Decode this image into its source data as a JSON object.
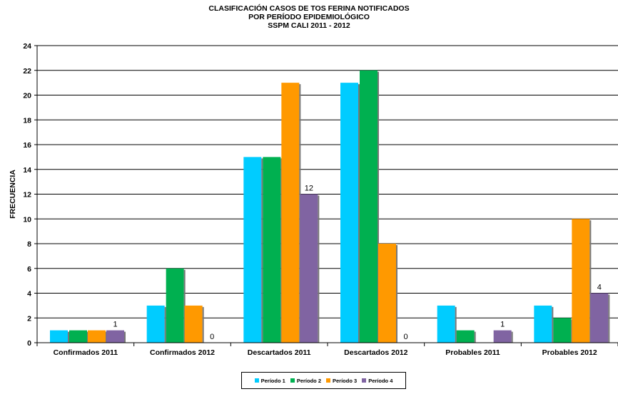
{
  "chart_data": {
    "type": "bar",
    "title": [
      "CLASIFICACIÓN CASOS DE TOS FERINA NOTIFICADOS",
      "POR PERÍODO EPIDEMIOLÓGICO",
      "SSPM CALI 2011  - 2012"
    ],
    "xlabel": "",
    "ylabel": "FRECUENCIA",
    "ylim": [
      0,
      24
    ],
    "yticks": [
      0,
      2,
      4,
      6,
      8,
      10,
      12,
      14,
      16,
      18,
      20,
      22,
      24
    ],
    "grid": true,
    "legend_position": "bottom",
    "categories": [
      "Confirmados 2011",
      "Confirmados 2012",
      "Descartados 2011",
      "Descartados 2012",
      "Probables 2011",
      "Probables 2012"
    ],
    "series": [
      {
        "name": "Período 1",
        "color": "#00CCFF",
        "values": [
          1,
          3,
          15,
          21,
          3,
          3
        ]
      },
      {
        "name": "Período 2",
        "color": "#00B050",
        "values": [
          1,
          6,
          15,
          22,
          1,
          2
        ]
      },
      {
        "name": "Período 3",
        "color": "#FF9900",
        "values": [
          1,
          3,
          21,
          8,
          0,
          10
        ]
      },
      {
        "name": "Período 4",
        "color": "#8064A2",
        "values": [
          1,
          0,
          12,
          0,
          1,
          4
        ]
      }
    ],
    "data_labels": [
      {
        "category": "Confirmados 2011",
        "series": "Período 4",
        "text": "1"
      },
      {
        "category": "Confirmados 2012",
        "series": "Período 4",
        "text": "0"
      },
      {
        "category": "Descartados 2011",
        "series": "Período 4",
        "text": "12"
      },
      {
        "category": "Descartados 2012",
        "series": "Período 4",
        "text": "0"
      },
      {
        "category": "Probables 2011",
        "series": "Período 4",
        "text": "1"
      },
      {
        "category": "Probables 2012",
        "series": "Período 4",
        "text": "4"
      }
    ]
  }
}
